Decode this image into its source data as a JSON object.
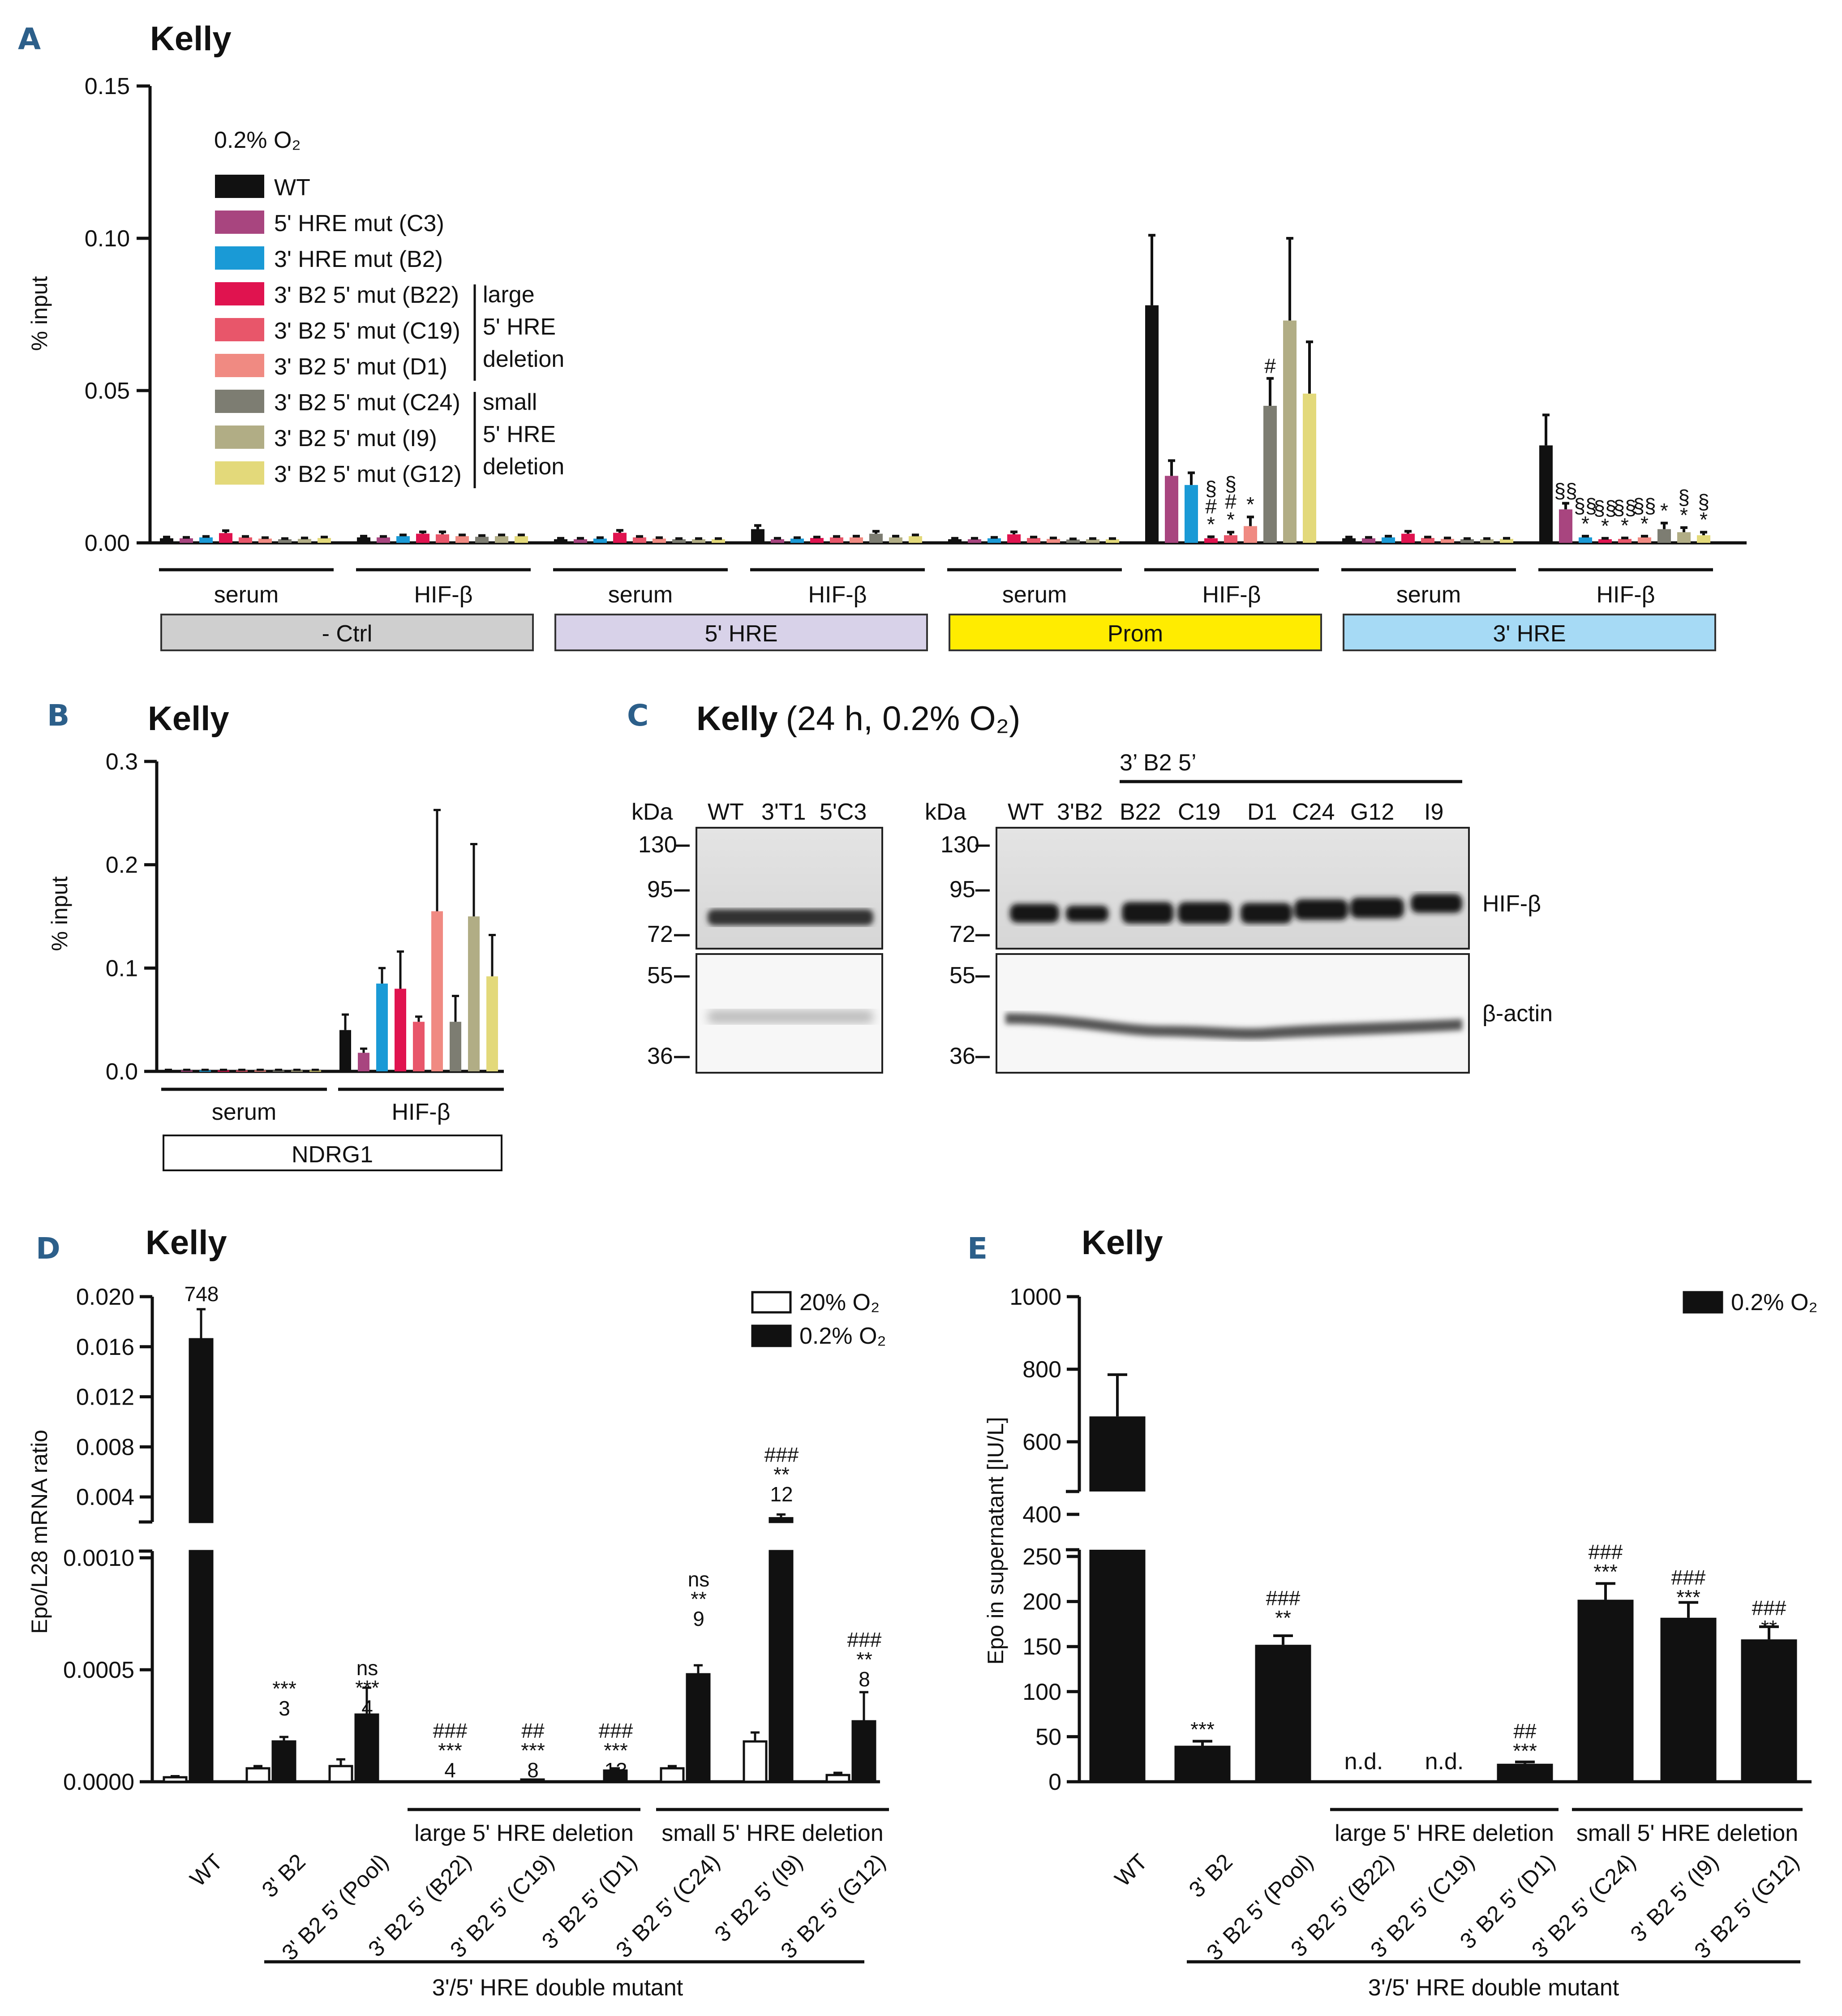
{
  "panels": {
    "A": {
      "letter": "A",
      "title": "Kelly"
    },
    "B": {
      "letter": "B",
      "title": "Kelly"
    },
    "C": {
      "letter": "C",
      "title_bold": "Kelly",
      "title_rest": "(24 h, 0.2% O₂)"
    },
    "D": {
      "letter": "D",
      "title": "Kelly"
    },
    "E": {
      "letter": "E",
      "title": "Kelly"
    }
  },
  "chart_data": [
    {
      "id": "A",
      "type": "bar",
      "title": "Kelly",
      "ylabel": "% input",
      "ylim": [
        0,
        0.15
      ],
      "yticks": [
        "0.00",
        "0.05",
        "0.10",
        "0.15"
      ],
      "condition_label": "0.2% O₂",
      "series": [
        {
          "name": "WT",
          "color": "#111111"
        },
        {
          "name": "5' HRE mut (C3)",
          "color": "#a8457f"
        },
        {
          "name": "3' HRE mut (B2)",
          "color": "#1a9ad6"
        },
        {
          "name": "3' B2 5' mut (B22)",
          "color": "#e0134f"
        },
        {
          "name": "3' B2 5' mut (C19)",
          "color": "#e8566a"
        },
        {
          "name": "3' B2 5' mut (D1)",
          "color": "#f08a82"
        },
        {
          "name": "3' B2 5' mut (C24)",
          "color": "#7d7d72"
        },
        {
          "name": "3' B2 5' mut (I9)",
          "color": "#b1ad85"
        },
        {
          "name": "3' B2 5' mut (G12)",
          "color": "#e3d97a"
        }
      ],
      "legend_brackets": [
        {
          "lines": [
            "large",
            "5' HRE",
            "deletion"
          ]
        },
        {
          "lines": [
            "small",
            "5' HRE",
            "deletion"
          ]
        }
      ],
      "groups": [
        {
          "label": "serum",
          "region": "- Ctrl",
          "values": [
            0.0015,
            0.0015,
            0.0018,
            0.0032,
            0.0018,
            0.0014,
            0.0012,
            0.0013,
            0.0016
          ],
          "errors": [
            0.0004,
            0.0003,
            0.0003,
            0.0008,
            0.0003,
            0.0003,
            0.0002,
            0.0003,
            0.0003
          ]
        },
        {
          "label": "HIF-β",
          "region": "- Ctrl",
          "values": [
            0.0018,
            0.0018,
            0.0022,
            0.003,
            0.0028,
            0.0022,
            0.002,
            0.0022,
            0.0022
          ],
          "errors": [
            0.0004,
            0.0003,
            0.0004,
            0.0006,
            0.0008,
            0.0004,
            0.0004,
            0.0004,
            0.0004
          ]
        },
        {
          "label": "serum",
          "region": "5' HRE",
          "values": [
            0.0012,
            0.0012,
            0.0014,
            0.0033,
            0.0018,
            0.0014,
            0.0012,
            0.0012,
            0.0012
          ],
          "errors": [
            0.0003,
            0.0003,
            0.0003,
            0.0008,
            0.0003,
            0.0003,
            0.0002,
            0.0002,
            0.0002
          ]
        },
        {
          "label": "HIF-β",
          "region": "5' HRE",
          "values": [
            0.0045,
            0.0012,
            0.0014,
            0.0016,
            0.0018,
            0.0018,
            0.003,
            0.0018,
            0.0022
          ],
          "errors": [
            0.0012,
            0.0003,
            0.0003,
            0.0003,
            0.0003,
            0.0004,
            0.0008,
            0.0004,
            0.0004
          ]
        },
        {
          "label": "serum",
          "region": "Prom",
          "values": [
            0.0012,
            0.0012,
            0.0015,
            0.0028,
            0.0016,
            0.0013,
            0.0011,
            0.0012,
            0.0012
          ],
          "errors": [
            0.0003,
            0.0003,
            0.0003,
            0.0008,
            0.0003,
            0.0003,
            0.0002,
            0.0002,
            0.0002
          ]
        },
        {
          "label": "HIF-β",
          "region": "Prom",
          "values": [
            0.078,
            0.022,
            0.019,
            0.0015,
            0.0025,
            0.0055,
            0.045,
            0.073,
            0.049
          ],
          "errors": [
            0.023,
            0.005,
            0.004,
            0.0005,
            0.001,
            0.003,
            0.009,
            0.027,
            0.017
          ]
        },
        {
          "label": "serum",
          "region": "3' HRE",
          "values": [
            0.0015,
            0.0015,
            0.0018,
            0.003,
            0.0016,
            0.0013,
            0.0012,
            0.0012,
            0.0013
          ],
          "errors": [
            0.0004,
            0.0003,
            0.0004,
            0.0008,
            0.0003,
            0.0003,
            0.0002,
            0.0002,
            0.0002
          ]
        },
        {
          "label": "HIF-β",
          "region": "3' HRE",
          "values": [
            0.032,
            0.011,
            0.0018,
            0.0012,
            0.0013,
            0.0018,
            0.0045,
            0.0035,
            0.0025
          ],
          "errors": [
            0.01,
            0.002,
            0.0004,
            0.0003,
            0.0003,
            0.0004,
            0.002,
            0.0015,
            0.001
          ]
        }
      ],
      "annotations": [
        {
          "group": 5,
          "bar": 3,
          "lines": [
            "§",
            "#",
            "*"
          ]
        },
        {
          "group": 5,
          "bar": 4,
          "lines": [
            "§",
            "#",
            "*"
          ]
        },
        {
          "group": 5,
          "bar": 5,
          "lines": [
            "*"
          ]
        },
        {
          "group": 5,
          "bar": 6,
          "lines": [
            "#"
          ]
        },
        {
          "group": 7,
          "bar": 1,
          "lines": [
            "§§"
          ]
        },
        {
          "group": 7,
          "bar": 2,
          "lines": [
            "§§",
            "*"
          ]
        },
        {
          "group": 7,
          "bar": 3,
          "lines": [
            "§§",
            "*"
          ]
        },
        {
          "group": 7,
          "bar": 4,
          "lines": [
            "§§",
            "*"
          ]
        },
        {
          "group": 7,
          "bar": 5,
          "lines": [
            "§§",
            "*"
          ]
        },
        {
          "group": 7,
          "bar": 6,
          "lines": [
            "*"
          ]
        },
        {
          "group": 7,
          "bar": 7,
          "lines": [
            "§",
            "*"
          ]
        },
        {
          "group": 7,
          "bar": 8,
          "lines": [
            "§",
            "*"
          ]
        }
      ],
      "regions": [
        {
          "label": "- Ctrl",
          "color": "#cfcfcf"
        },
        {
          "label": "5' HRE",
          "color": "#d8d2e9"
        },
        {
          "label": "Prom",
          "color": "#ffec00"
        },
        {
          "label": "3' HRE",
          "color": "#a6daf5"
        }
      ]
    },
    {
      "id": "B",
      "type": "bar",
      "title": "Kelly",
      "ylabel": "% input",
      "ylim": [
        0,
        0.3
      ],
      "yticks": [
        "0.0",
        "0.1",
        "0.2",
        "0.3"
      ],
      "region_label": "NDRG1",
      "groups": [
        {
          "label": "serum",
          "values": [
            0.001,
            0.001,
            0.001,
            0.001,
            0.001,
            0.001,
            0.001,
            0.001,
            0.001
          ],
          "errors": [
            0.0005,
            0.0005,
            0.0005,
            0.0005,
            0.0005,
            0.0005,
            0.0005,
            0.0005,
            0.0005
          ]
        },
        {
          "label": "HIF-β",
          "values": [
            0.04,
            0.018,
            0.085,
            0.08,
            0.048,
            0.155,
            0.048,
            0.15,
            0.092
          ],
          "errors": [
            0.015,
            0.004,
            0.015,
            0.036,
            0.005,
            0.098,
            0.025,
            0.07,
            0.04
          ]
        }
      ]
    },
    {
      "id": "D",
      "type": "bar",
      "title": "Kelly",
      "ylabel": "Epo/L28 mRNA ratio",
      "ylim_lower": [
        0,
        0.001
      ],
      "ylim_upper": [
        0.002,
        0.02
      ],
      "yticks_lower": [
        "0.0000",
        "0.0005",
        "0.0010"
      ],
      "yticks_upper": [
        "0.004",
        "0.008",
        "0.012",
        "0.016",
        "0.020"
      ],
      "legend": [
        {
          "name": "20% O₂",
          "fill": "#ffffff"
        },
        {
          "name": "0.2% O₂",
          "fill": "#111111"
        }
      ],
      "categories": [
        "WT",
        "3' B2",
        "3' B2 5' (Pool)",
        "3' B2 5' (B22)",
        "3' B2 5' (C19)",
        "3' B2 5' (D1)",
        "3' B2 5' (C24)",
        "3' B2 5' (I9)",
        "3' B2 5' (G12)"
      ],
      "series": [
        {
          "name": "20% O₂",
          "values": [
            2e-05,
            6e-05,
            7e-05,
            0.0,
            0.0,
            0.0,
            6e-05,
            0.00018,
            3e-05
          ],
          "errors": [
            5e-06,
            1e-05,
            3e-05,
            0.0,
            0.0,
            0.0,
            1e-05,
            4e-05,
            1e-05
          ]
        },
        {
          "name": "0.2% O₂",
          "values": [
            0.0166,
            0.00018,
            0.0003,
            0.0,
            1e-05,
            5e-05,
            0.00048,
            0.0023,
            0.00027
          ],
          "errors": [
            0.0024,
            2e-05,
            0.00012,
            0.0,
            0.0,
            1e-05,
            4e-05,
            0.0003,
            0.00013
          ]
        }
      ],
      "top_labels": [
        {
          "cat": 0,
          "lines": [
            "748"
          ]
        },
        {
          "cat": 1,
          "lines": [
            "***",
            "3"
          ]
        },
        {
          "cat": 2,
          "lines": [
            "ns",
            "***",
            "4"
          ]
        },
        {
          "cat": 3,
          "lines": [
            "###",
            "***",
            "4"
          ]
        },
        {
          "cat": 4,
          "lines": [
            "##",
            "***",
            "8"
          ]
        },
        {
          "cat": 5,
          "lines": [
            "###",
            "***",
            "13"
          ]
        },
        {
          "cat": 6,
          "lines": [
            "ns",
            "**",
            "9"
          ]
        },
        {
          "cat": 7,
          "lines": [
            "###",
            "**",
            "12"
          ]
        },
        {
          "cat": 8,
          "lines": [
            "###",
            "**",
            "8"
          ]
        }
      ],
      "group_labels": [
        {
          "label": "large 5' HRE deletion",
          "from": 3,
          "to": 5
        },
        {
          "label": "small 5' HRE deletion",
          "from": 6,
          "to": 8
        }
      ],
      "bottom_label": "3'/5' HRE double mutant"
    },
    {
      "id": "E",
      "type": "bar",
      "title": "Kelly",
      "ylabel": "Epo in supernatant [IU/L]",
      "ylim_lower": [
        0,
        250
      ],
      "ylim_upper": [
        300,
        1000
      ],
      "yticks_lower": [
        "0",
        "50",
        "100",
        "150",
        "200",
        "250"
      ],
      "yticks_upper": [
        "400",
        "600",
        "800",
        "1000"
      ],
      "legend": [
        {
          "name": "0.2% O₂",
          "fill": "#111111"
        }
      ],
      "categories": [
        "WT",
        "3' B2",
        "3' B2 5' (Pool)",
        "3' B2 5' (B22)",
        "3' B2 5' (C19)",
        "3' B2 5' (D1)",
        "3' B2 5' (C24)",
        "3' B2 5' (I9)",
        "3' B2 5' (G12)"
      ],
      "values": [
        670,
        40,
        152,
        0,
        0,
        20,
        202,
        182,
        158
      ],
      "errors": [
        115,
        5,
        10,
        0,
        0,
        2,
        18,
        17,
        14
      ],
      "top_labels": [
        {
          "cat": 1,
          "lines": [
            "***"
          ]
        },
        {
          "cat": 2,
          "lines": [
            "###",
            "**"
          ]
        },
        {
          "cat": 3,
          "lines": [
            "n.d."
          ]
        },
        {
          "cat": 4,
          "lines": [
            "n.d."
          ]
        },
        {
          "cat": 5,
          "lines": [
            "##",
            "***"
          ]
        },
        {
          "cat": 6,
          "lines": [
            "###",
            "***"
          ]
        },
        {
          "cat": 7,
          "lines": [
            "###",
            "***"
          ]
        },
        {
          "cat": 8,
          "lines": [
            "###",
            "**"
          ]
        }
      ],
      "group_labels": [
        {
          "label": "large 5' HRE deletion",
          "from": 3,
          "to": 5
        },
        {
          "label": "small 5' HRE deletion",
          "from": 6,
          "to": 8
        }
      ],
      "bottom_label": "3'/5' HRE double mutant"
    }
  ],
  "blot": {
    "left": {
      "kda": "kDa",
      "lanes": [
        "WT",
        "3'T1",
        "5'C3"
      ],
      "markers_top": [
        "130",
        "95",
        "72"
      ],
      "markers_bottom": [
        "55",
        "36"
      ]
    },
    "right": {
      "kda": "kDa",
      "header": "3’ B2 5’",
      "lanes": [
        "WT",
        "3'B2",
        "B22",
        "C19",
        "D1",
        "C24",
        "G12",
        "I9"
      ],
      "markers_top": [
        "130",
        "95",
        "72"
      ],
      "markers_bottom": [
        "55",
        "36"
      ],
      "label_top": "HIF-β",
      "label_bottom": "β-actin"
    }
  }
}
